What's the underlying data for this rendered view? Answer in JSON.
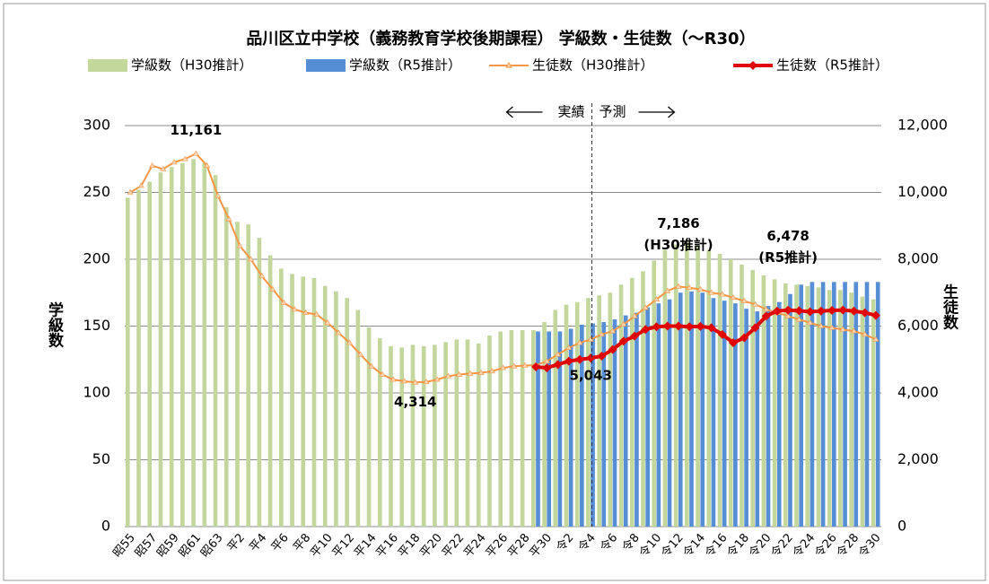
{
  "chart_data": {
    "type": "bar_line",
    "title": "品川区立中学校（義務教育学校後期課程） 学級数・生徒数（～R30）",
    "ylabel": "学級数",
    "y2label": "生徒数",
    "categories": [
      "昭55",
      null,
      "昭57",
      null,
      "昭59",
      null,
      "昭61",
      null,
      "昭63",
      null,
      "平2",
      null,
      "平4",
      null,
      "平6",
      null,
      "平8",
      null,
      "平10",
      null,
      "平12",
      null,
      "平14",
      null,
      "平16",
      null,
      "平18",
      null,
      "平20",
      null,
      "平22",
      null,
      "平24",
      null,
      "平26",
      null,
      "平28",
      null,
      "平30",
      null,
      "令2",
      null,
      "令4",
      null,
      "令6",
      null,
      "令8",
      null,
      "令10",
      null,
      "令12",
      null,
      "令14",
      null,
      "令16",
      null,
      "令18",
      null,
      "令20",
      null,
      "令22",
      null,
      "令24",
      null,
      "令26",
      null,
      "令28",
      null,
      "令30"
    ],
    "ylim": [
      0,
      300
    ],
    "yticks": [
      0,
      50,
      100,
      150,
      200,
      250,
      300
    ],
    "y2lim": [
      0,
      12000
    ],
    "y2ticks": [
      0,
      {
        "value": 2000,
        "label": "2,000"
      },
      {
        "value": 4000,
        "label": "4,000"
      },
      {
        "value": 6000,
        "label": "6,000"
      },
      {
        "value": 8000,
        "label": "8,000"
      },
      {
        "value": 10000,
        "label": "10,000"
      },
      {
        "value": 12000,
        "label": "12,000"
      }
    ],
    "grid": true,
    "legend": "top",
    "annotations": [
      "実績",
      "予測",
      "(H30推計)",
      "(R5推計)"
    ],
    "series": [
      {
        "name": "学級数（H30推計）",
        "kind": "bar",
        "color": "#c3d69b",
        "values": [
          246,
          252,
          258,
          265,
          269,
          272,
          275,
          272,
          263,
          239,
          228,
          226,
          216,
          203,
          193,
          189,
          187,
          186,
          180,
          176,
          171,
          162,
          149,
          141,
          135,
          134,
          136,
          135,
          136,
          138,
          140,
          140,
          137,
          143,
          146,
          147,
          147,
          147,
          153,
          162,
          166,
          168,
          171,
          173,
          175,
          181,
          186,
          191,
          199,
          207,
          211,
          213,
          211,
          207,
          204,
          200,
          196,
          192,
          188,
          185,
          182,
          181,
          180,
          179,
          177,
          177,
          175,
          172,
          170
        ]
      },
      {
        "name": "学級数（R5推計）",
        "kind": "bar",
        "color": "#558ed5",
        "values": [
          null,
          null,
          null,
          null,
          null,
          null,
          null,
          null,
          null,
          null,
          null,
          null,
          null,
          null,
          null,
          null,
          null,
          null,
          null,
          null,
          null,
          null,
          null,
          null,
          null,
          null,
          null,
          null,
          null,
          null,
          null,
          null,
          null,
          null,
          null,
          null,
          null,
          146,
          146,
          146,
          148,
          151,
          152,
          153,
          155,
          158,
          160,
          164,
          167,
          170,
          175,
          176,
          175,
          171,
          169,
          167,
          163,
          161,
          165,
          168,
          174,
          181,
          183,
          183,
          183,
          183,
          183,
          183,
          183
        ]
      },
      {
        "name": "生徒数（H30推計）",
        "kind": "line",
        "axis": "y2",
        "color": "#f79646",
        "values": [
          10000,
          10200,
          10800,
          10700,
          10900,
          11000,
          11161,
          10800,
          9900,
          9200,
          8400,
          8000,
          7500,
          7100,
          6700,
          6500,
          6400,
          6350,
          6100,
          5800,
          5500,
          5150,
          4800,
          4550,
          4400,
          4350,
          4314,
          4330,
          4400,
          4500,
          4550,
          4580,
          4600,
          4650,
          4750,
          4800,
          4820,
          4830,
          4950,
          5150,
          5350,
          5500,
          5600,
          5750,
          5850,
          6050,
          6300,
          6550,
          6800,
          7050,
          7186,
          7150,
          7100,
          7000,
          6950,
          6850,
          6750,
          6650,
          6500,
          6400,
          6300,
          6200,
          6100,
          6000,
          5950,
          5900,
          5850,
          5750,
          5600
        ],
        "value_labels": [
          null,
          null,
          null,
          null,
          null,
          null,
          "11,161",
          null,
          null,
          null,
          null,
          null,
          null,
          null,
          null,
          null,
          null,
          null,
          null,
          null,
          null,
          null,
          null,
          null,
          null,
          null,
          "4,314",
          null,
          null,
          null,
          null,
          null,
          null,
          null,
          null,
          null,
          null,
          null,
          null,
          null,
          null,
          null,
          null,
          null,
          null,
          null,
          null,
          null,
          null,
          null,
          "7,186",
          null,
          null,
          null,
          null,
          null,
          null,
          null,
          null,
          null,
          null,
          null,
          null,
          null,
          null,
          null,
          null,
          null,
          null
        ]
      },
      {
        "name": "生徒数（R5推計）",
        "kind": "line",
        "axis": "y2",
        "color": "#e00000",
        "values": [
          null,
          null,
          null,
          null,
          null,
          null,
          null,
          null,
          null,
          null,
          null,
          null,
          null,
          null,
          null,
          null,
          null,
          null,
          null,
          null,
          null,
          null,
          null,
          null,
          null,
          null,
          null,
          null,
          null,
          null,
          null,
          null,
          null,
          null,
          null,
          null,
          null,
          4780,
          4750,
          4850,
          4950,
          5000,
          5043,
          5100,
          5300,
          5550,
          5700,
          5900,
          5980,
          6000,
          6000,
          5980,
          5990,
          5950,
          5750,
          5500,
          5650,
          5950,
          6300,
          6450,
          6478,
          6460,
          6430,
          6450,
          6470,
          6480,
          6450,
          6400,
          6320
        ],
        "value_labels": [
          null,
          null,
          null,
          null,
          null,
          null,
          null,
          null,
          null,
          null,
          null,
          null,
          null,
          null,
          null,
          null,
          null,
          null,
          null,
          null,
          null,
          null,
          null,
          null,
          null,
          null,
          null,
          null,
          null,
          null,
          null,
          null,
          null,
          null,
          null,
          null,
          null,
          null,
          null,
          null,
          null,
          null,
          "5,043",
          null,
          null,
          null,
          null,
          null,
          null,
          null,
          null,
          null,
          null,
          null,
          null,
          null,
          null,
          null,
          null,
          null,
          "6,478",
          null,
          null,
          null,
          null,
          null,
          null,
          null,
          null
        ]
      }
    ]
  }
}
